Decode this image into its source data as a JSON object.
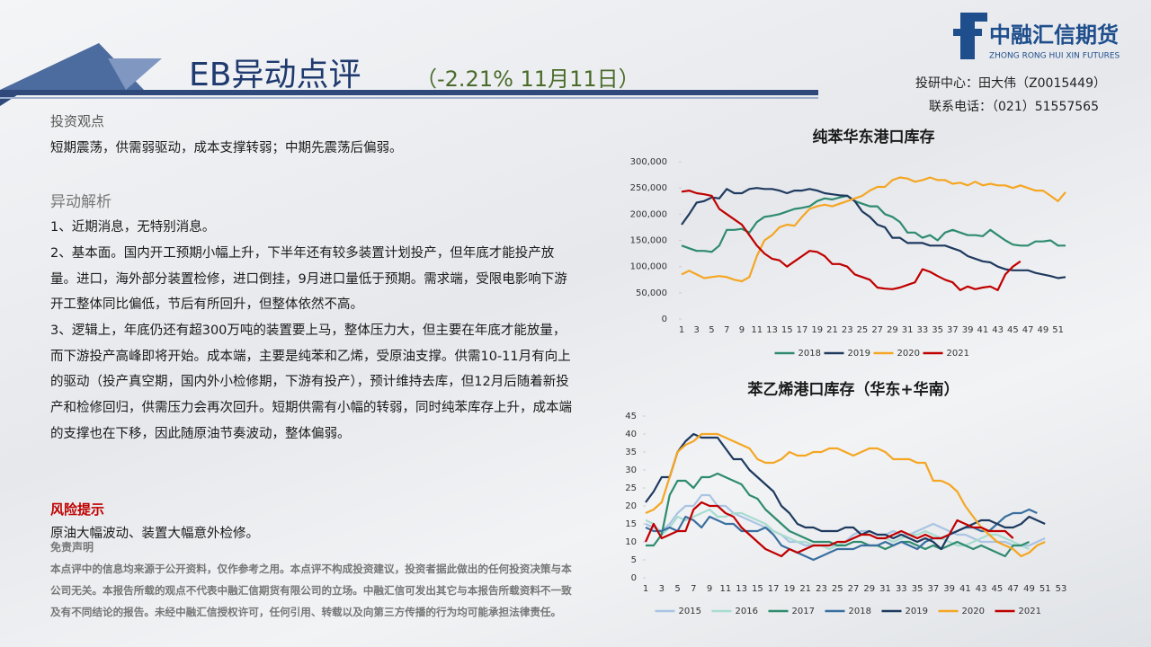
{
  "header": {
    "title": "EB异动点评",
    "subtitle": "（-2.21% 11月11日）"
  },
  "logo": {
    "name": "中融汇信期货",
    "english": "ZHONG RONG HUI XIN FUTURES"
  },
  "contact": [
    "投研中心：田大伟（Z0015449）",
    "联系电话：（021）51557565"
  ],
  "view": {
    "heading": "投资观点",
    "text": "短期震荡，供需弱驱动，成本支撑转弱；中期先震荡后偏弱。"
  },
  "analysis": {
    "heading": "异动解析",
    "paragraphs": [
      "1、近期消息，无特别消息。",
      "2、基本面。国内开工预期小幅上升，下半年还有较多装置计划投产，但年底才能投产放量。进口，海外部分装置检修，进口倒挂，9月进口量低于预期。需求端，受限电影响下游开工整体同比偏低，节后有所回升，但整体依然不高。",
      "3、逻辑上，年底仍还有超300万吨的装置要上马，整体压力大，但主要在年底才能放量，而下游投产高峰即将开始。成本端，主要是纯苯和乙烯，受原油支撑。供需10-11月有向上的驱动（投产真空期，国内外小检修期，下游有投产），预计维持去库，但12月后随着新投产和检修回归，供需压力会再次回升。短期供需有小幅的转弱，同时纯苯库存上升，成本端的支撑也在下移，因此随原油节奏波动，整体偏弱。"
    ]
  },
  "risk": {
    "heading": "风险提示",
    "text": "原油大幅波动、装置大幅意外检修。"
  },
  "disclaimer": {
    "heading": "免责声明",
    "text": "本点评中的信息均来源于公开资料，仅作参考之用。本点评不构成投资建议，投资者据此做出的任何投资决策与本公司无关。本报告所载的观点不代表中融汇信期货有限公司的立场。中融汇信可发出其它与本报告所载资料不一致及有不同结论的报告。未经中融汇信授权许可，任何引用、转载以及向第三方传播的行为均可能承担法律责任。"
  },
  "chart_data": [
    {
      "type": "line",
      "title": "纯苯华东港口库存",
      "categories": [
        1,
        null,
        3,
        null,
        5,
        null,
        7,
        null,
        9,
        null,
        11,
        null,
        13,
        null,
        15,
        null,
        17,
        null,
        19,
        null,
        21,
        null,
        23,
        null,
        25,
        null,
        27,
        null,
        29,
        null,
        31,
        null,
        33,
        null,
        35,
        null,
        37,
        null,
        39,
        null,
        41,
        null,
        43,
        null,
        45,
        null,
        47,
        null,
        49,
        null,
        51,
        null
      ],
      "ylim": [
        0,
        300000
      ],
      "yticks": [
        0,
        {
          "value": 50000,
          "label": "50,000"
        },
        {
          "value": 100000,
          "label": "100,000"
        },
        {
          "value": 150000,
          "label": "150,000"
        },
        {
          "value": 200000,
          "label": "200,000"
        },
        {
          "value": 250000,
          "label": "250,000"
        },
        {
          "value": 300000,
          "label": "300,000"
        }
      ],
      "legend": "bottom",
      "series": [
        {
          "name": "2018",
          "color": "#2e8b6e",
          "values": [
            140000,
            135000,
            130000,
            130000,
            128000,
            140000,
            170000,
            170000,
            172000,
            165000,
            185000,
            195000,
            197000,
            200000,
            205000,
            210000,
            212000,
            215000,
            225000,
            230000,
            228000,
            232000,
            235000,
            225000,
            220000,
            215000,
            215000,
            200000,
            195000,
            185000,
            165000,
            165000,
            155000,
            160000,
            150000,
            165000,
            170000,
            165000,
            160000,
            160000,
            158000,
            170000,
            160000,
            150000,
            142000,
            140000,
            140000,
            148000,
            148000,
            150000,
            140000,
            140000
          ]
        },
        {
          "name": "2019",
          "color": "#1f3a5f",
          "values": [
            180000,
            200000,
            222000,
            225000,
            232000,
            230000,
            248000,
            240000,
            240000,
            248000,
            250000,
            248000,
            248000,
            245000,
            240000,
            245000,
            245000,
            248000,
            245000,
            240000,
            238000,
            236000,
            235000,
            225000,
            205000,
            195000,
            180000,
            175000,
            155000,
            155000,
            145000,
            145000,
            145000,
            140000,
            140000,
            140000,
            135000,
            130000,
            120000,
            115000,
            110000,
            108000,
            100000,
            95000,
            93000,
            93000,
            93000,
            88000,
            85000,
            82000,
            78000,
            80000
          ]
        },
        {
          "name": "2020",
          "color": "#f5a623",
          "values": [
            85000,
            92000,
            85000,
            78000,
            80000,
            82000,
            80000,
            75000,
            72000,
            80000,
            120000,
            150000,
            160000,
            175000,
            180000,
            178000,
            195000,
            210000,
            215000,
            218000,
            215000,
            220000,
            225000,
            230000,
            235000,
            245000,
            252000,
            252000,
            265000,
            270000,
            268000,
            262000,
            265000,
            270000,
            265000,
            265000,
            258000,
            260000,
            255000,
            262000,
            255000,
            258000,
            255000,
            255000,
            250000,
            255000,
            250000,
            245000,
            245000,
            235000,
            225000,
            242000
          ]
        },
        {
          "name": "2021",
          "color": "#c00000",
          "values": [
            243000,
            245000,
            240000,
            238000,
            235000,
            210000,
            200000,
            190000,
            180000,
            160000,
            140000,
            125000,
            115000,
            112000,
            100000,
            110000,
            120000,
            130000,
            128000,
            120000,
            105000,
            105000,
            100000,
            85000,
            80000,
            75000,
            60000,
            58000,
            57000,
            60000,
            65000,
            70000,
            95000,
            90000,
            82000,
            75000,
            70000,
            55000,
            62000,
            57000,
            60000,
            62000,
            55000,
            85000,
            100000,
            110000,
            null,
            null,
            null,
            null,
            null,
            null
          ]
        }
      ]
    },
    {
      "type": "line",
      "title": "苯乙烯港口库存（华东+华南）",
      "categories": [
        1,
        null,
        3,
        null,
        5,
        null,
        7,
        null,
        9,
        null,
        11,
        null,
        13,
        null,
        15,
        null,
        17,
        null,
        19,
        null,
        21,
        null,
        23,
        null,
        25,
        null,
        27,
        null,
        29,
        null,
        31,
        null,
        33,
        null,
        35,
        null,
        37,
        null,
        39,
        null,
        41,
        null,
        43,
        null,
        45,
        null,
        47,
        null,
        49,
        null,
        51,
        null,
        53
      ],
      "ylim": [
        0,
        45
      ],
      "yticks": [
        0,
        5,
        10,
        15,
        20,
        25,
        30,
        35,
        40,
        45
      ],
      "legend": "bottom",
      "series": [
        {
          "name": "2015",
          "color": "#a9c4e4",
          "values": [
            15,
            14,
            13,
            15,
            18,
            20,
            20,
            23,
            23,
            20,
            20,
            18,
            17,
            16,
            15,
            14,
            13,
            12,
            10,
            10,
            9,
            9,
            9,
            9,
            9,
            10,
            12,
            13,
            13,
            12,
            12,
            13,
            12,
            12,
            13,
            14,
            15,
            14,
            13,
            12,
            12,
            11,
            10,
            10,
            10,
            10,
            9,
            9,
            9,
            10,
            11,
            null,
            null
          ]
        },
        {
          "name": "2016",
          "color": "#a8dcd0",
          "values": [
            16,
            15,
            12,
            14,
            17,
            16,
            17,
            18,
            19,
            17,
            17,
            18,
            18,
            17,
            16,
            15,
            13,
            12,
            11,
            10,
            10,
            9,
            9,
            8,
            9,
            10,
            11,
            12,
            12,
            11,
            11,
            10,
            11,
            12,
            12,
            13,
            12,
            11,
            10,
            9,
            9,
            10,
            11,
            12,
            12,
            11,
            10,
            9,
            8,
            null,
            null,
            null,
            null
          ]
        },
        {
          "name": "2017",
          "color": "#2e8b6e",
          "values": [
            9,
            9,
            12,
            23,
            27,
            27,
            25,
            28,
            28,
            29,
            28,
            27,
            26,
            23,
            22,
            19,
            17,
            15,
            13,
            12,
            11,
            10,
            10,
            10,
            9,
            9,
            10,
            10,
            9,
            9,
            8,
            9,
            10,
            10,
            9,
            8,
            9,
            8,
            9,
            10,
            9,
            8,
            9,
            8,
            7,
            6,
            9,
            9,
            10,
            null,
            null,
            null,
            null
          ]
        },
        {
          "name": "2018",
          "color": "#3a6fa0",
          "values": [
            14,
            13,
            13,
            14,
            13,
            17,
            16,
            14,
            17,
            16,
            15,
            15,
            13,
            13,
            13,
            14,
            12,
            9,
            8,
            7,
            6,
            5,
            6,
            7,
            8,
            8,
            8,
            9,
            9,
            9,
            10,
            9,
            10,
            9,
            8,
            10,
            11,
            11,
            12,
            13,
            14,
            14,
            13,
            13,
            15,
            17,
            18,
            18,
            19,
            18,
            null,
            null,
            null
          ]
        },
        {
          "name": "2019",
          "color": "#1f3a5f",
          "values": [
            21,
            24,
            28,
            28,
            35,
            38,
            40,
            39,
            39,
            39,
            36,
            33,
            33,
            30,
            28,
            26,
            24,
            20,
            18,
            15,
            14,
            14,
            13,
            13,
            13,
            14,
            14,
            12,
            13,
            12,
            12,
            11,
            12,
            11,
            10,
            11,
            10,
            8,
            12,
            13,
            14,
            15,
            16,
            16,
            15,
            14,
            14,
            15,
            17,
            16,
            15,
            null,
            null
          ]
        },
        {
          "name": "2020",
          "color": "#f5a623",
          "values": [
            18,
            19,
            21,
            28,
            35,
            37,
            38,
            40,
            40,
            40,
            39,
            38,
            37,
            36,
            33,
            32,
            32,
            33,
            35,
            34,
            34,
            35,
            35,
            36,
            36,
            35,
            34,
            35,
            36,
            36,
            35,
            33,
            33,
            33,
            32,
            32,
            27,
            27,
            26,
            24,
            20,
            17,
            14,
            12,
            10,
            9,
            8,
            6,
            7,
            9,
            10,
            null,
            null
          ]
        },
        {
          "name": "2021",
          "color": "#c00000",
          "values": [
            10,
            15,
            11,
            12,
            13,
            13,
            19,
            21,
            20,
            20,
            18,
            17,
            14,
            12,
            10,
            8,
            7,
            6,
            8,
            7,
            8,
            9,
            9,
            9,
            10,
            10,
            11,
            12,
            12,
            11,
            11,
            12,
            13,
            12,
            11,
            12,
            11,
            11,
            12,
            16,
            15,
            14,
            14,
            13,
            13,
            13,
            11,
            null,
            null,
            null,
            null,
            null,
            null
          ]
        }
      ]
    }
  ]
}
